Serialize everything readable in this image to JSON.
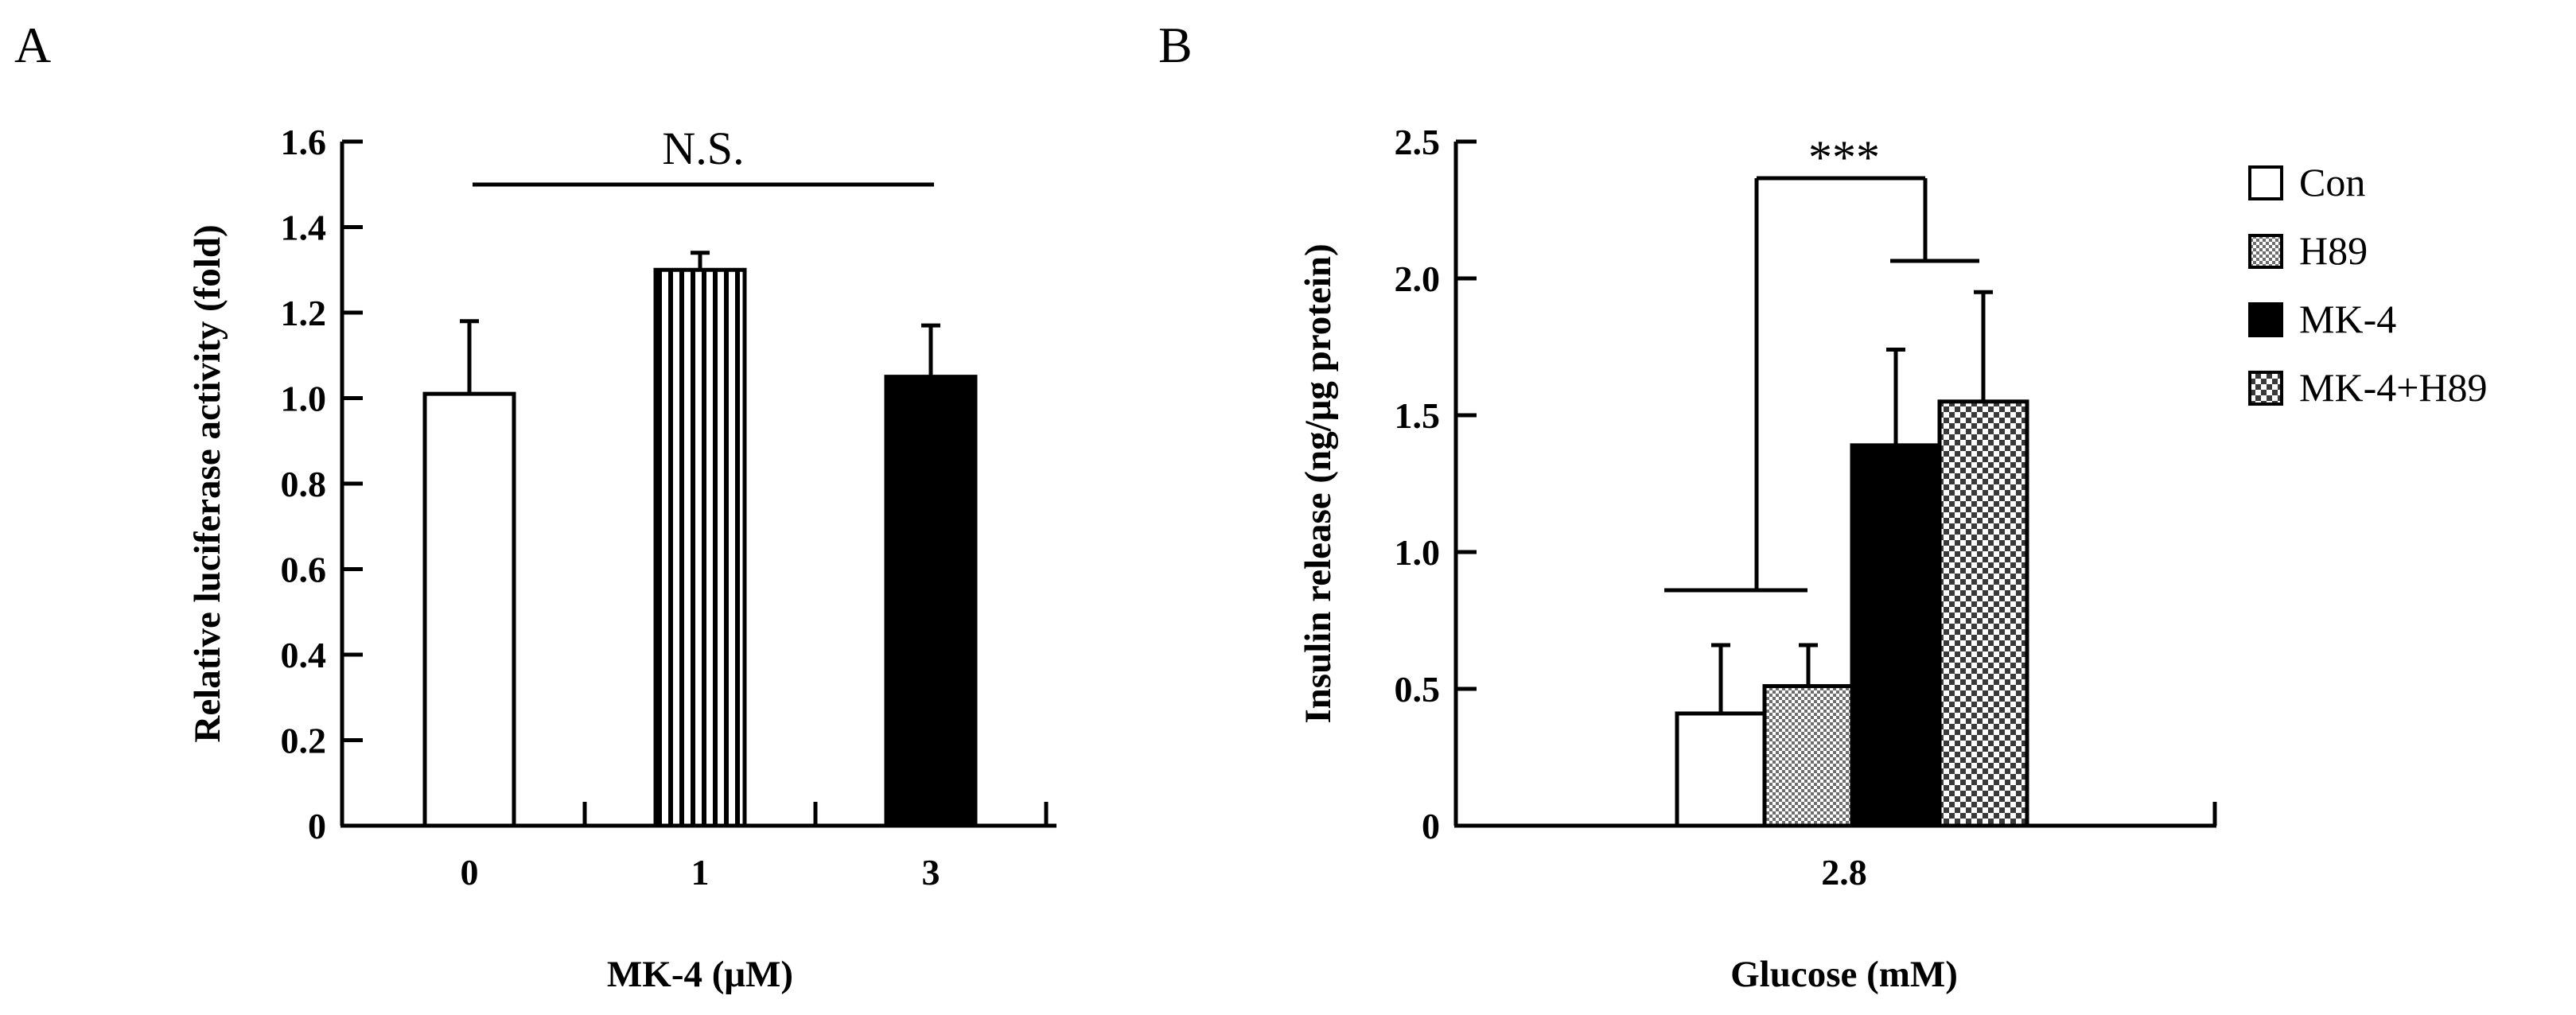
{
  "colors": {
    "ink": "#000000",
    "paper": "#ffffff",
    "hatch": "#8c8c8c",
    "dots": "#9a9a9a"
  },
  "chart_data": [
    {
      "type": "bar",
      "panel_label": "A",
      "ylabel": "Relative luciferase activity (fold)",
      "xlabel": "MK-4 (μM)",
      "ylim": [
        0,
        1.6
      ],
      "yticks": [
        "0",
        "0.2",
        "0.4",
        "0.6",
        "0.8",
        "1.0",
        "1.2",
        "1.4",
        "1.6"
      ],
      "ytick_values": [
        0,
        0.2,
        0.4,
        0.6,
        0.8,
        1.0,
        1.2,
        1.4,
        1.6
      ],
      "categories": [
        "0",
        "1",
        "3"
      ],
      "values": [
        1.01,
        1.3,
        1.05
      ],
      "errors": [
        0.17,
        0.04,
        0.12
      ],
      "fills": [
        "white",
        "vertical-stripes",
        "black"
      ],
      "annotation": "N.S."
    },
    {
      "type": "bar",
      "panel_label": "B",
      "ylabel": "Insulin release (ng/μg protein)",
      "xlabel": "Glucose (mM)",
      "ylim": [
        0,
        2.5
      ],
      "yticks": [
        "0",
        "0.5",
        "1.0",
        "1.5",
        "2.0",
        "2.5"
      ],
      "ytick_values": [
        0,
        0.5,
        1.0,
        1.5,
        2.0,
        2.5
      ],
      "categories": [
        "2.8"
      ],
      "series": [
        {
          "name": "Con",
          "values": [
            0.41
          ],
          "errors": [
            0.25
          ],
          "fill": "white"
        },
        {
          "name": "H89",
          "values": [
            0.51
          ],
          "errors": [
            0.15
          ],
          "fill": "fine-dots"
        },
        {
          "name": "MK-4",
          "values": [
            1.39
          ],
          "errors": [
            0.35
          ],
          "fill": "black"
        },
        {
          "name": "MK-4+H89",
          "values": [
            1.55
          ],
          "errors": [
            0.4
          ],
          "fill": "coarse-dots"
        }
      ],
      "annotation": "***",
      "legend_position": "right"
    }
  ]
}
